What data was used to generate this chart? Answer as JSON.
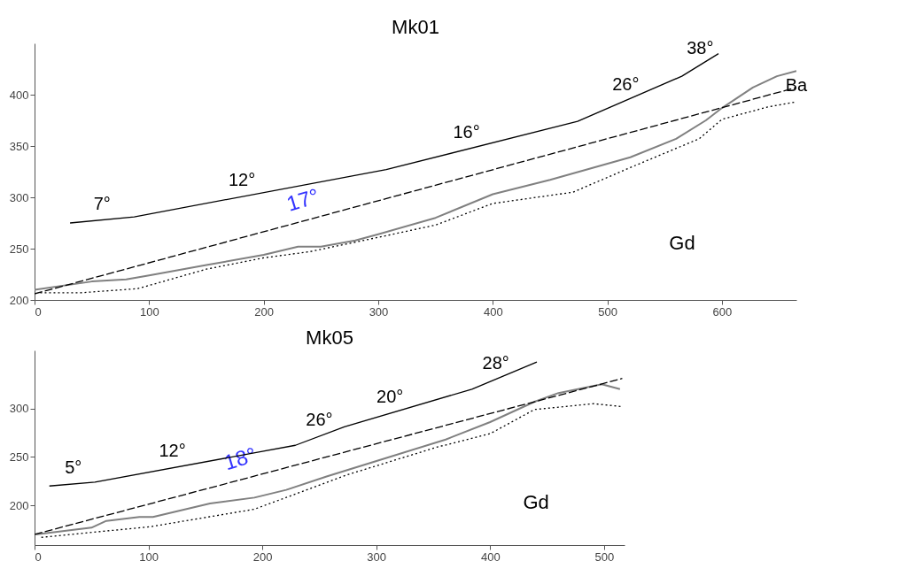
{
  "chart_data": [
    {
      "type": "line",
      "title": "Mk01",
      "xlim": [
        0,
        665
      ],
      "ylim": [
        200,
        450
      ],
      "xticks": [
        0,
        100,
        200,
        300,
        400,
        500,
        600
      ],
      "yticks": [
        200,
        250,
        300,
        350,
        400
      ],
      "grid": false,
      "legend": false,
      "series": [
        {
          "color": "#808080",
          "line_style": "solid",
          "x": [
            0,
            50,
            80,
            100,
            150,
            200,
            230,
            250,
            280,
            300,
            350,
            400,
            450,
            520,
            560,
            586,
            600,
            627,
            648,
            665
          ],
          "values": [
            210,
            218,
            220,
            224,
            234,
            244,
            252,
            252,
            258,
            264,
            280,
            303,
            317,
            339,
            357,
            375,
            387,
            407,
            418,
            423
          ]
        },
        {
          "color": "#000000",
          "line_style": "dotted",
          "x": [
            5,
            40,
            90,
            150,
            200,
            240,
            300,
            350,
            400,
            470,
            520,
            580,
            600,
            640,
            665
          ],
          "values": [
            207,
            207,
            211,
            230,
            241,
            247,
            261,
            273,
            294,
            305,
            329,
            357,
            376,
            388,
            393
          ]
        },
        {
          "name": "17°",
          "color": "#000000",
          "line_style": "dashed",
          "x": [
            0,
            665
          ],
          "values": [
            206,
            407
          ]
        },
        {
          "color": "#000000",
          "line_style": "solid",
          "x": [
            31,
            87,
            307,
            474,
            565,
            597
          ],
          "values": [
            275,
            281,
            327,
            374,
            418,
            440
          ]
        }
      ],
      "annotations": [
        {
          "text": "7°",
          "x": 59,
          "y": 278
        },
        {
          "text": "12°",
          "x": 181,
          "y": 301
        },
        {
          "text": "16°",
          "x": 377,
          "y": 347
        },
        {
          "text": "26°",
          "x": 516,
          "y": 394
        },
        {
          "text": "38°",
          "x": 581,
          "y": 429
        },
        "Gd",
        {
          "text": "Ba",
          "x": 665,
          "y": 393
        }
      ]
    },
    {
      "type": "line",
      "title": "Mk05",
      "xlim": [
        0,
        518
      ],
      "ylim": [
        159,
        360
      ],
      "xticks": [
        0,
        100,
        200,
        300,
        400,
        500
      ],
      "yticks": [
        200,
        250,
        300
      ],
      "grid": false,
      "legend": false,
      "series": [
        {
          "color": "#808080",
          "line_style": "solid",
          "x": [
            1,
            50,
            63,
            92,
            104,
            154,
            193,
            221,
            257,
            309,
            361,
            400,
            439,
            460,
            498,
            514
          ],
          "values": [
            170,
            177,
            184,
            188,
            188,
            202,
            208,
            216,
            230,
            249,
            268,
            286,
            307,
            316,
            325,
            320
          ]
        },
        {
          "color": "#000000",
          "line_style": "dotted",
          "x": [
            6,
            102,
            193,
            232,
            273,
            353,
            400,
            439,
            491,
            516
          ],
          "values": [
            167,
            178,
            196,
            213,
            231,
            260,
            274,
            299,
            305,
            302
          ]
        },
        {
          "name": "18°",
          "color": "#000000",
          "line_style": "dashed",
          "x": [
            0,
            516
          ],
          "values": [
            170,
            331
          ]
        },
        {
          "color": "#000000",
          "line_style": "solid",
          "x": [
            13,
            53,
            229,
            272,
            384,
            441
          ],
          "values": [
            220,
            224,
            262,
            281,
            320,
            348
          ]
        }
      ],
      "annotations": [
        {
          "text": "5°",
          "x": 34,
          "y": 222
        },
        {
          "text": "12°",
          "x": 121,
          "y": 239
        },
        {
          "text": "26°",
          "x": 250,
          "y": 271
        },
        {
          "text": "20°",
          "x": 312,
          "y": 295
        },
        {
          "text": "28°",
          "x": 405,
          "y": 330
        },
        "Gd"
      ]
    }
  ]
}
